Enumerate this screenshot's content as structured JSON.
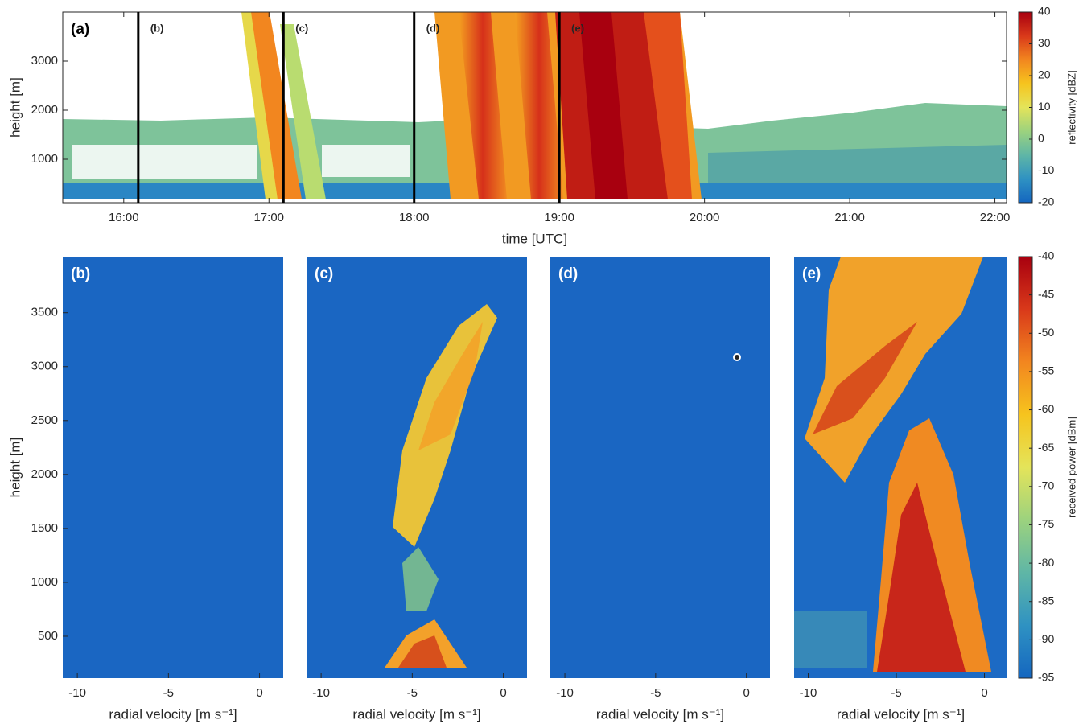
{
  "chart_data": [
    {
      "type": "heatmap",
      "panel_label": "(a)",
      "xlabel": "time [UTC]",
      "ylabel": "height [m]",
      "xlim": [
        15.58,
        22.08
      ],
      "xticks": [
        {
          "value": 16,
          "label": "16:00"
        },
        {
          "value": 17,
          "label": "17:00"
        },
        {
          "value": 18,
          "label": "18:00"
        },
        {
          "value": 19,
          "label": "19:00"
        },
        {
          "value": 20,
          "label": "20:00"
        },
        {
          "value": 21,
          "label": "21:00"
        },
        {
          "value": 22,
          "label": "22:00"
        }
      ],
      "ylim": [
        115,
        4000
      ],
      "yticks": [
        1000,
        2000,
        3000
      ],
      "markers": [
        {
          "x": 16.1,
          "label": "(b)"
        },
        {
          "x": 17.1,
          "label": "(c)"
        },
        {
          "x": 18.0,
          "label": "(d)"
        },
        {
          "x": 19.0,
          "label": "(e)"
        }
      ],
      "colorbar": {
        "label": "reflectivity [dBZ]",
        "lim": [
          -20,
          40
        ],
        "ticks": [
          -20,
          -10,
          0,
          10,
          20,
          30,
          40
        ],
        "colors": [
          "#1466c0",
          "#2f92c2",
          "#5fb6a6",
          "#9cd27e",
          "#e4e45a",
          "#f6c41e",
          "#f2861f",
          "#d9391a",
          "#a8000f"
        ]
      }
    },
    {
      "type": "heatmap",
      "panel_label": "(b)",
      "xlabel": "radial velocity [m s⁻¹]",
      "ylabel": "height [m]",
      "xlim": [
        -10.8,
        1.3
      ],
      "xticks": [
        -10,
        -5,
        0
      ],
      "ylim": [
        112,
        4020
      ],
      "yticks": [
        500,
        1000,
        1500,
        2000,
        2500,
        3000,
        3500
      ]
    },
    {
      "type": "heatmap",
      "panel_label": "(c)",
      "xlabel": "radial velocity [m s⁻¹]",
      "xlim": [
        -10.8,
        1.3
      ],
      "xticks": [
        -10,
        -5,
        0
      ]
    },
    {
      "type": "heatmap",
      "panel_label": "(d)",
      "xlabel": "radial velocity [m s⁻¹]",
      "xlim": [
        -10.8,
        1.3
      ],
      "xticks": [
        -10,
        -5,
        0
      ]
    },
    {
      "type": "heatmap",
      "panel_label": "(e)",
      "xlabel": "radial velocity [m s⁻¹]",
      "xlim": [
        -10.8,
        1.3
      ],
      "xticks": [
        -10,
        -5,
        0
      ],
      "colorbar": {
        "label": "received power [dBm]",
        "lim": [
          -95,
          -40
        ],
        "ticks": [
          -95,
          -90,
          -85,
          -80,
          -75,
          -70,
          -65,
          -60,
          -55,
          -50,
          -45,
          -40
        ],
        "colors": [
          "#1466c0",
          "#2f92c2",
          "#5fb6a6",
          "#9cd27e",
          "#e4e45a",
          "#f6c41e",
          "#f2861f",
          "#d9391a",
          "#a8000f"
        ]
      }
    }
  ]
}
